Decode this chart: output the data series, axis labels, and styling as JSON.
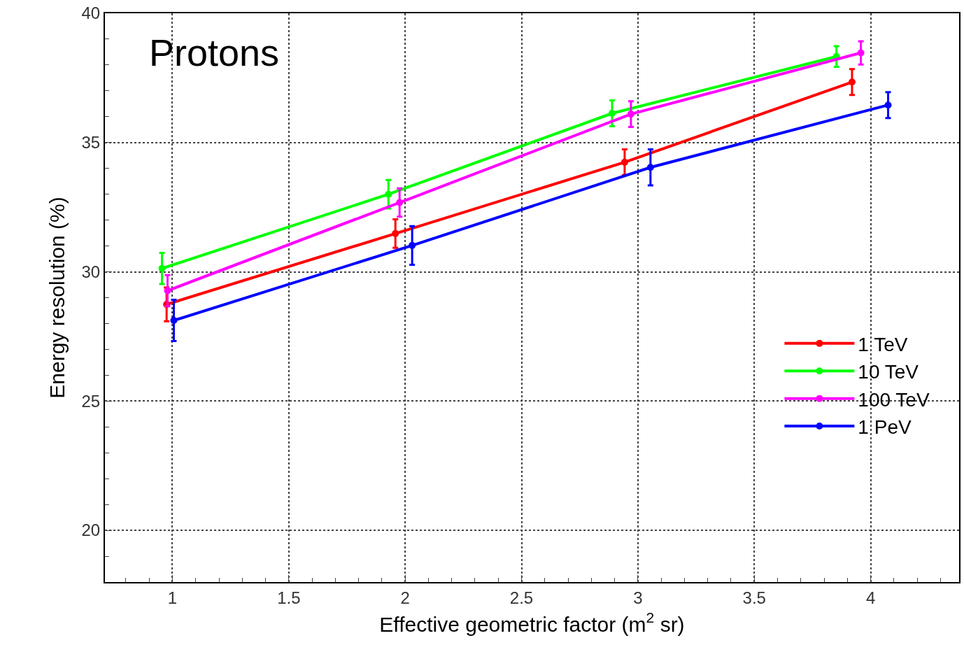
{
  "chart_data": {
    "type": "line",
    "title": "Protons",
    "xlabel": "Effective geometric factor (m$^{2}$ sr)",
    "ylabel": "Energy resolution (%)",
    "xlim": [
      0.71,
      4.38
    ],
    "xticks": [
      1,
      1.5,
      2,
      2.5,
      3,
      3.5,
      4
    ],
    "ylim": [
      18,
      40
    ],
    "yticks": [
      20,
      25,
      30,
      35,
      40
    ],
    "grid": true,
    "legend": "right",
    "marker": "circle",
    "line_style": "solid",
    "series": [
      {
        "name": "1 TeV",
        "color": "#ff0000",
        "x": [
          0.975,
          1.958,
          2.943,
          3.92
        ],
        "values": [
          28.74,
          31.48,
          34.24,
          37.34
        ],
        "errors": [
          0.65,
          0.55,
          0.5,
          0.5
        ]
      },
      {
        "name": "10 TeV",
        "color": "#00ff00",
        "x": [
          0.955,
          1.928,
          2.889,
          3.853
        ],
        "values": [
          30.13,
          33.0,
          36.13,
          38.33
        ],
        "errors": [
          0.6,
          0.55,
          0.5,
          0.4
        ]
      },
      {
        "name": "100 TeV",
        "color": "#ff00ff",
        "x": [
          0.979,
          1.976,
          2.97,
          3.958
        ],
        "values": [
          29.27,
          32.68,
          36.1,
          38.47
        ],
        "errors": [
          0.6,
          0.55,
          0.5,
          0.45
        ]
      },
      {
        "name": "1 PeV",
        "color": "#0000ff",
        "x": [
          1.006,
          2.03,
          3.054,
          4.075
        ],
        "values": [
          28.12,
          31.02,
          34.04,
          36.45
        ],
        "errors": [
          0.8,
          0.75,
          0.7,
          0.5
        ]
      }
    ]
  }
}
